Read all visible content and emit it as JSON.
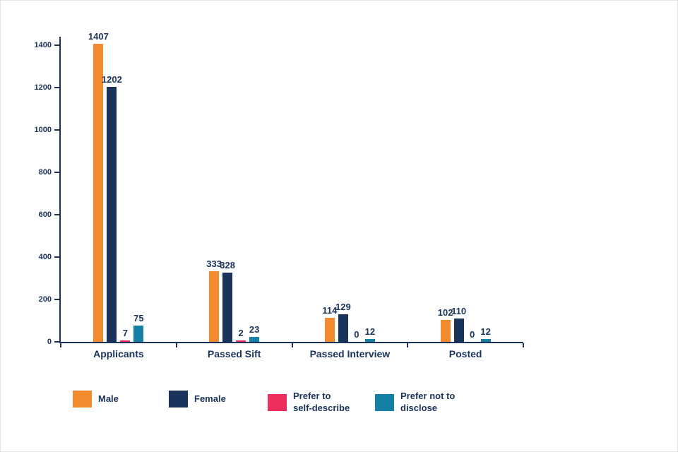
{
  "chart_data": {
    "type": "bar",
    "title": "",
    "xlabel": "",
    "ylabel": "",
    "categories": [
      "Applicants",
      "Passed Sift",
      "Passed Interview",
      "Posted"
    ],
    "series": [
      {
        "name": "Male",
        "legend_label": "Male",
        "color": "#F28A30",
        "values": [
          1407,
          333,
          114,
          102
        ]
      },
      {
        "name": "Female",
        "legend_label": "Female",
        "color": "#19335A",
        "values": [
          1202,
          328,
          129,
          110
        ]
      },
      {
        "name": "Prefer to self-describe",
        "legend_label": "Prefer to\nself-describe",
        "color": "#ED2E5D",
        "values": [
          7,
          2,
          0,
          0
        ]
      },
      {
        "name": "Prefer not to disclose",
        "legend_label": "Prefer not to\ndisclose",
        "color": "#1480A3",
        "values": [
          75,
          23,
          12,
          12
        ]
      }
    ],
    "ylim": [
      0,
      1400
    ],
    "ytick_step": 200,
    "grid": false,
    "legend_position": "bottom",
    "axis_color": "#19335A",
    "label_color": "#19335A"
  }
}
